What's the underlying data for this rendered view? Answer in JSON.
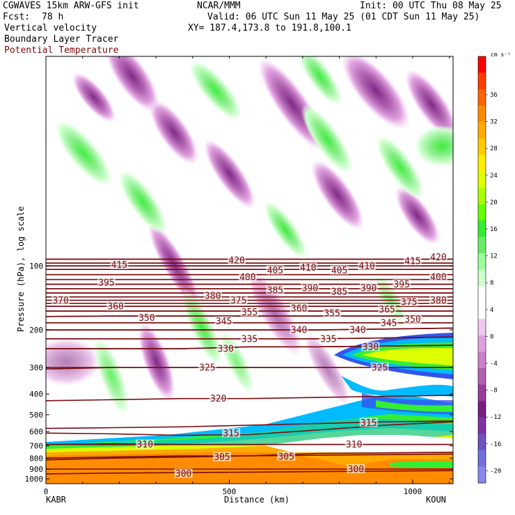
{
  "header": {
    "model": "CGWAVES 15km ARW-GFS init",
    "org": "NCAR/MMM",
    "init": "Init: 00 UTC Thu 08 May 25",
    "fcst_label": "Fcst:",
    "fcst_value": "78 h",
    "valid": "Valid: 06 UTC Sun 11 May 25 (01 CDT Sun 11 May 25)",
    "field1": "Vertical velocity",
    "field2": "Boundary Layer Tracer",
    "field3": "Potential Temperature",
    "xy": "XY= 187.4,173.8 to 191.8,100.1"
  },
  "colors": {
    "theta_line": "#7a0c10",
    "theta_label": "#7a0c10"
  },
  "chart_data": {
    "type": "cross-section",
    "xlabel": "Distance (km)",
    "ylabel": "Pressure (hPa), log scale",
    "x_left_label": "KABR",
    "x_right_label": "KOUN",
    "xlim": [
      0,
      1110
    ],
    "x_ticks": [
      0,
      500,
      1000
    ],
    "ylim": [
      1000,
      10
    ],
    "y_ticks": [
      100,
      200,
      300,
      400,
      500,
      600,
      700,
      800,
      900,
      1000
    ],
    "colorbar": {
      "units": "cm s⁻¹",
      "labels": [
        36,
        32,
        28,
        24,
        20,
        16,
        12,
        8,
        4,
        0,
        -4,
        -8,
        -12,
        -16,
        -20
      ],
      "colors": [
        "#ff0000",
        "#ff3c00",
        "#ff6400",
        "#ff8c00",
        "#ffaa00",
        "#ffcc00",
        "#ffee00",
        "#ddff00",
        "#aaff00",
        "#66ff00",
        "#33ee33",
        "#66ee66",
        "#99ff99",
        "#ccffcc",
        "#ffffff",
        "#ffffff",
        "#f0c8f0",
        "#e0a0e0",
        "#cc80cc",
        "#b060b0",
        "#9a3c9a",
        "#7a1e82",
        "#8030a0",
        "#7050c0",
        "#7070dd",
        "#8888ee"
      ]
    },
    "theta_contours": [
      {
        "value": 300,
        "p": [
          948,
          940,
          935,
          930,
          925,
          920,
          915
        ],
        "label_x": 375,
        "label_p": 945
      },
      {
        "value": 300,
        "p": [
          900,
          900,
          900,
          900,
          900,
          900,
          900
        ],
        "label_x": 845,
        "label_p": 900
      },
      {
        "value": 305,
        "p": [
          815,
          800,
          790,
          780,
          760,
          755,
          750
        ],
        "label_x": 480,
        "label_p": 790
      },
      {
        "value": 305,
        "p": [
          800,
          790,
          780,
          780,
          775,
          770,
          765
        ],
        "label_x": 655,
        "label_p": 785
      },
      {
        "value": 310,
        "p": [
          690,
          685,
          690,
          690,
          690,
          690,
          690
        ],
        "label_x": 270,
        "label_p": 690
      },
      {
        "value": 310,
        "p": [
          690,
          690,
          690,
          690,
          690,
          690,
          690
        ],
        "label_x": 840,
        "label_p": 690
      },
      {
        "value": 315,
        "p": [
          610,
          615,
          625,
          620,
          590,
          560,
          540
        ],
        "label_x": 505,
        "label_p": 610
      },
      {
        "value": 315,
        "p": [
          580,
          575,
          570,
          560,
          550,
          540,
          535
        ],
        "label_x": 880,
        "label_p": 545
      },
      {
        "value": 320,
        "p": [
          430,
          425,
          420,
          420,
          415,
          410,
          405
        ],
        "label_x": 470,
        "label_p": 420
      },
      {
        "value": 325,
        "p": [
          305,
          300,
          300,
          300,
          300,
          300,
          300
        ],
        "label_x": 440,
        "label_p": 300
      },
      {
        "value": 325,
        "p": [
          300,
          300,
          300,
          300,
          300,
          300,
          300
        ],
        "label_x": 910,
        "label_p": 300
      },
      {
        "value": 330,
        "p": [
          245,
          245,
          245,
          240,
          240,
          238,
          236
        ],
        "label_x": 490,
        "label_p": 245
      },
      {
        "value": 330,
        "p": [
          245,
          245,
          245,
          240,
          240,
          238,
          236
        ],
        "label_x": 885,
        "label_p": 240
      },
      {
        "value": 335,
        "p": [
          220,
          220,
          220,
          220,
          220,
          218,
          216
        ],
        "label_x": 555,
        "label_p": 220
      },
      {
        "value": 335,
        "p": [
          220,
          220,
          220,
          220,
          220,
          218,
          216
        ],
        "label_x": 770,
        "label_p": 220
      },
      {
        "value": 340,
        "p": [
          200,
          200,
          200,
          200,
          200,
          198,
          196
        ],
        "label_x": 690,
        "label_p": 200
      },
      {
        "value": 340,
        "p": [
          200,
          200,
          200,
          200,
          200,
          198,
          196
        ],
        "label_x": 850,
        "label_p": 200
      },
      {
        "value": 345,
        "p": [
          185,
          185,
          185,
          185,
          185,
          185,
          185
        ],
        "label_x": 485,
        "label_p": 182
      },
      {
        "value": 345,
        "p": [
          185,
          185,
          185,
          185,
          185,
          185,
          185
        ],
        "label_x": 935,
        "label_p": 185
      },
      {
        "value": 350,
        "p": [
          173,
          172,
          172,
          172,
          172,
          172,
          172
        ],
        "label_x": 275,
        "label_p": 175
      },
      {
        "value": 350,
        "p": [
          173,
          172,
          172,
          172,
          172,
          172,
          172
        ],
        "label_x": 1000,
        "label_p": 178
      },
      {
        "value": 355,
        "p": [
          163,
          163,
          163,
          163,
          163,
          163,
          163
        ],
        "label_x": 555,
        "label_p": 165
      },
      {
        "value": 355,
        "p": [
          163,
          163,
          163,
          163,
          163,
          163,
          163
        ],
        "label_x": 780,
        "label_p": 167
      },
      {
        "value": 360,
        "p": [
          155,
          155,
          155,
          155,
          155,
          155,
          155
        ],
        "label_x": 190,
        "label_p": 155
      },
      {
        "value": 360,
        "p": [
          155,
          155,
          155,
          155,
          155,
          155,
          155
        ],
        "label_x": 690,
        "label_p": 158
      },
      {
        "value": 365,
        "p": [
          150,
          150,
          150,
          150,
          150,
          150,
          150
        ],
        "label_x": 930,
        "label_p": 160
      },
      {
        "value": 370,
        "p": [
          145,
          145,
          145,
          145,
          145,
          145,
          145
        ],
        "label_x": 40,
        "label_p": 145
      },
      {
        "value": 375,
        "p": [
          140,
          140,
          140,
          140,
          140,
          140,
          140
        ],
        "label_x": 525,
        "label_p": 145
      },
      {
        "value": 375,
        "p": [
          140,
          140,
          140,
          140,
          140,
          140,
          140
        ],
        "label_x": 990,
        "label_p": 148
      },
      {
        "value": 380,
        "p": [
          134,
          134,
          134,
          134,
          134,
          134,
          134
        ],
        "label_x": 455,
        "label_p": 138
      },
      {
        "value": 380,
        "p": [
          134,
          134,
          134,
          134,
          134,
          134,
          134
        ],
        "label_x": 1070,
        "label_p": 145
      },
      {
        "value": 385,
        "p": [
          128,
          128,
          128,
          128,
          128,
          128,
          128
        ],
        "label_x": 625,
        "label_p": 130
      },
      {
        "value": 385,
        "p": [
          128,
          128,
          128,
          128,
          128,
          128,
          128
        ],
        "label_x": 800,
        "label_p": 132
      },
      {
        "value": 390,
        "p": [
          122,
          122,
          122,
          122,
          122,
          122,
          122
        ],
        "label_x": 720,
        "label_p": 127
      },
      {
        "value": 390,
        "p": [
          122,
          122,
          122,
          122,
          122,
          122,
          122
        ],
        "label_x": 880,
        "label_p": 127
      },
      {
        "value": 395,
        "p": [
          116,
          116,
          116,
          116,
          116,
          116,
          116
        ],
        "label_x": 165,
        "label_p": 120
      },
      {
        "value": 395,
        "p": [
          116,
          116,
          116,
          116,
          116,
          116,
          116
        ],
        "label_x": 970,
        "label_p": 122
      },
      {
        "value": 400,
        "p": [
          110,
          110,
          110,
          110,
          110,
          110,
          110
        ],
        "label_x": 550,
        "label_p": 113
      },
      {
        "value": 400,
        "p": [
          110,
          110,
          110,
          110,
          110,
          110,
          110
        ],
        "label_x": 1070,
        "label_p": 113
      },
      {
        "value": 405,
        "p": [
          104,
          104,
          104,
          104,
          104,
          104,
          104
        ],
        "label_x": 625,
        "label_p": 105
      },
      {
        "value": 405,
        "p": [
          104,
          104,
          104,
          104,
          104,
          104,
          104
        ],
        "label_x": 800,
        "label_p": 105
      },
      {
        "value": 410,
        "p": [
          100,
          100,
          100,
          100,
          100,
          100,
          100
        ],
        "label_x": 715,
        "label_p": 102
      },
      {
        "value": 410,
        "p": [
          100,
          100,
          100,
          100,
          100,
          100,
          100
        ],
        "label_x": 875,
        "label_p": 100
      },
      {
        "value": 415,
        "p": [
          97,
          97,
          97,
          97,
          97,
          97,
          97
        ],
        "label_x": 200,
        "label_p": 99
      },
      {
        "value": 415,
        "p": [
          97,
          97,
          97,
          97,
          97,
          97,
          97
        ],
        "label_x": 1000,
        "label_p": 95
      },
      {
        "value": 420,
        "p": [
          93,
          93,
          93,
          93,
          93,
          93,
          93
        ],
        "label_x": 520,
        "label_p": 94
      },
      {
        "value": 420,
        "p": [
          93,
          93,
          93,
          93,
          93,
          93,
          93
        ],
        "label_x": 1070,
        "label_p": 91
      }
    ]
  }
}
